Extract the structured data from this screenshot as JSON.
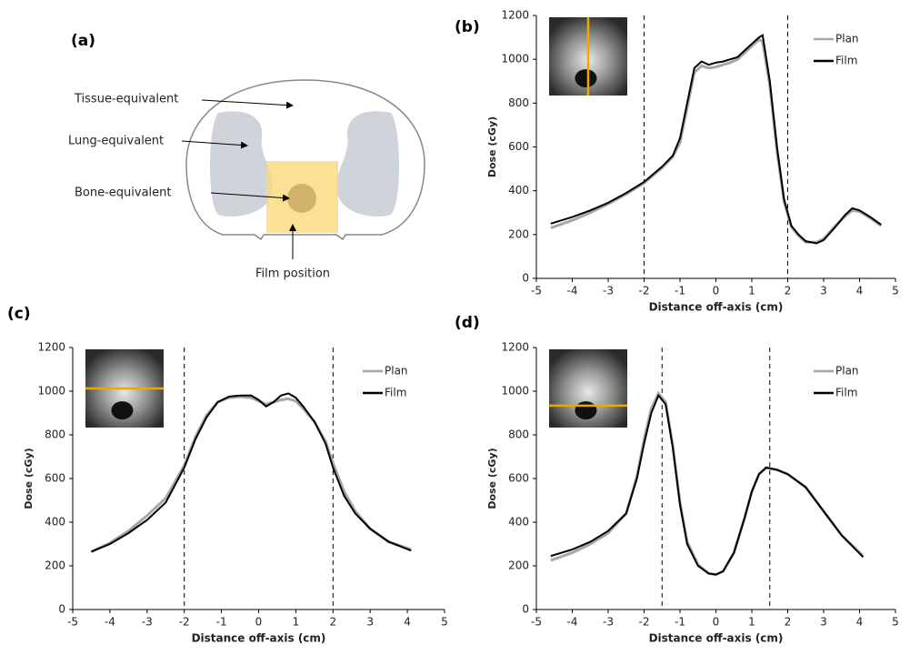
{
  "diagram": {
    "panel": "(a)",
    "labels": [
      "Tissue-equivalent",
      "Lung-equivalent",
      "Bone-equivalent",
      "Film position"
    ]
  },
  "chart_data": [
    {
      "type": "line",
      "panel": "(b)",
      "xlabel": "Distance off-axis (cm)",
      "ylabel": "Dose (cGy)",
      "xlim": [
        -5,
        5
      ],
      "xticks": [
        -5,
        -4,
        -3,
        -2,
        -1,
        0,
        1,
        2,
        3,
        4,
        5
      ],
      "ylim": [
        0,
        1200
      ],
      "yticks": [
        0,
        200,
        400,
        600,
        800,
        1000,
        1200
      ],
      "vlines": [
        -2,
        2
      ],
      "legend": "upper right",
      "x": [
        -4.6,
        -4,
        -3.5,
        -3,
        -2.5,
        -2,
        -1.5,
        -1.2,
        -1,
        -0.8,
        -0.6,
        -0.4,
        -0.2,
        0,
        0.2,
        0.4,
        0.6,
        0.8,
        1,
        1.2,
        1.3,
        1.5,
        1.7,
        1.9,
        2.1,
        2.3,
        2.5,
        2.8,
        3,
        3.3,
        3.6,
        3.8,
        4,
        4.3,
        4.6
      ],
      "series": [
        {
          "name": "Plan",
          "color": "#a6a6a6",
          "values": [
            230,
            265,
            300,
            340,
            385,
            435,
            505,
            555,
            620,
            780,
            940,
            970,
            960,
            965,
            975,
            985,
            1000,
            1030,
            1060,
            1090,
            1080,
            880,
            580,
            350,
            235,
            195,
            165,
            165,
            180,
            235,
            285,
            310,
            305,
            275,
            240
          ]
        },
        {
          "name": "Film",
          "color": "#000000",
          "values": [
            250,
            280,
            310,
            345,
            390,
            440,
            510,
            560,
            640,
            800,
            960,
            990,
            975,
            985,
            990,
            1000,
            1010,
            1040,
            1070,
            1100,
            1110,
            900,
            600,
            360,
            240,
            200,
            170,
            160,
            175,
            230,
            290,
            320,
            310,
            280,
            245
          ]
        }
      ]
    },
    {
      "type": "line",
      "panel": "(c)",
      "xlabel": "Distance off-axis (cm)",
      "ylabel": "Dose (cGy)",
      "xlim": [
        -5,
        5
      ],
      "xticks": [
        -5,
        -4,
        -3,
        -2,
        -1,
        0,
        1,
        2,
        3,
        4,
        5
      ],
      "ylim": [
        0,
        1200
      ],
      "yticks": [
        0,
        200,
        400,
        600,
        800,
        1000,
        1200
      ],
      "vlines": [
        -2,
        2
      ],
      "legend": "upper right",
      "x": [
        -4.5,
        -4,
        -3.5,
        -3,
        -2.5,
        -2,
        -1.7,
        -1.4,
        -1.1,
        -0.8,
        -0.5,
        -0.2,
        0,
        0.2,
        0.4,
        0.6,
        0.8,
        1,
        1.2,
        1.5,
        1.8,
        2,
        2.3,
        2.6,
        3,
        3.5,
        4.1
      ],
      "series": [
        {
          "name": "Plan",
          "color": "#a6a6a6",
          "values": [
            265,
            305,
            360,
            430,
            510,
            660,
            790,
            890,
            950,
            970,
            975,
            970,
            955,
            940,
            950,
            960,
            965,
            955,
            920,
            860,
            770,
            670,
            540,
            450,
            370,
            310,
            275
          ]
        },
        {
          "name": "Film",
          "color": "#000000",
          "values": [
            265,
            300,
            350,
            410,
            490,
            650,
            780,
            880,
            950,
            975,
            980,
            980,
            960,
            930,
            950,
            980,
            990,
            970,
            930,
            860,
            760,
            650,
            520,
            440,
            370,
            310,
            270
          ]
        }
      ]
    },
    {
      "type": "line",
      "panel": "(d)",
      "xlabel": "Distance off-axis (cm)",
      "ylabel": "Dose (cGy)",
      "xlim": [
        -5,
        5
      ],
      "xticks": [
        -5,
        -4,
        -3,
        -2,
        -1,
        0,
        1,
        2,
        3,
        4,
        5
      ],
      "ylim": [
        0,
        1200
      ],
      "yticks": [
        0,
        200,
        400,
        600,
        800,
        1000,
        1200
      ],
      "vlines": [
        -1.5,
        1.5
      ],
      "legend": "upper right",
      "x": [
        -4.6,
        -4,
        -3.5,
        -3,
        -2.5,
        -2.2,
        -2,
        -1.8,
        -1.6,
        -1.4,
        -1.2,
        -1,
        -0.8,
        -0.5,
        -0.2,
        0,
        0.2,
        0.5,
        0.8,
        1,
        1.2,
        1.4,
        1.7,
        2,
        2.5,
        3,
        3.5,
        4.1
      ],
      "series": [
        {
          "name": "Plan",
          "color": "#a6a6a6",
          "values": [
            225,
            260,
            300,
            350,
            440,
            610,
            780,
            920,
            990,
            950,
            750,
            490,
            310,
            205,
            165,
            160,
            175,
            260,
            420,
            540,
            620,
            650,
            640,
            620,
            560,
            450,
            340,
            245
          ]
        },
        {
          "name": "Film",
          "color": "#000000",
          "values": [
            245,
            275,
            310,
            360,
            440,
            600,
            760,
            900,
            980,
            940,
            740,
            480,
            300,
            200,
            165,
            160,
            175,
            260,
            420,
            540,
            620,
            650,
            640,
            620,
            560,
            450,
            340,
            240
          ]
        }
      ]
    }
  ]
}
